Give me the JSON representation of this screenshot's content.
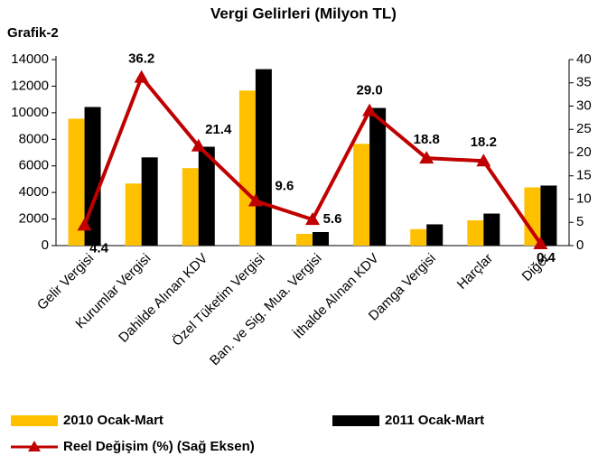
{
  "chart_data": {
    "type": "bar_line",
    "label": "Grafik-2",
    "title": "Vergi Gelirleri (Milyon TL)",
    "categories": [
      "Gelir Vergisi",
      "Kurumlar Vergisi",
      "Dahilde Alınan KDV",
      "Özel Tüketim Vergisi",
      "Ban. ve Sig. Mua. Vergisi",
      "İthalde Alınan KDV",
      "Damga Vergisi",
      "Harçlar",
      "Diğer"
    ],
    "series": [
      {
        "name": "2010 Ocak-Mart",
        "type": "bar",
        "color": "#ffc000",
        "values": [
          9550,
          4670,
          5830,
          11670,
          880,
          7660,
          1240,
          1900,
          4380
        ]
      },
      {
        "name": "2011 Ocak-Mart",
        "type": "bar",
        "color": "#000000",
        "values": [
          10430,
          6640,
          7440,
          13280,
          1020,
          10360,
          1600,
          2410,
          4520
        ]
      },
      {
        "name": "Reel Değişim (%) (Sağ Eksen)",
        "type": "line",
        "axis": "y2",
        "color": "#c00000",
        "values": [
          4.4,
          36.2,
          21.4,
          9.6,
          5.6,
          29.0,
          18.8,
          18.2,
          0.4
        ],
        "value_labels": [
          "4.4",
          "36.2",
          "21.4",
          "9.6",
          "5.6",
          "29.0",
          "18.8",
          "18.2",
          "0.4"
        ]
      }
    ],
    "ylim": [
      0,
      14000
    ],
    "yticks": [
      0,
      2000,
      4000,
      6000,
      8000,
      10000,
      12000,
      14000
    ],
    "y2lim": [
      0,
      40
    ],
    "y2ticks": [
      0,
      5,
      10,
      15,
      20,
      25,
      30,
      35,
      40
    ]
  }
}
